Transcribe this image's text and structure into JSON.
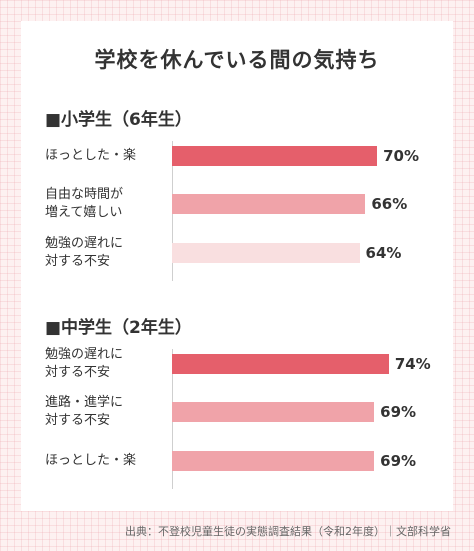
{
  "title": "学校を休んでいる間の気持ち",
  "source": "出典：不登校児童生徒の実態調査結果（令和2年度）｜文部科学省",
  "colors": {
    "dark": "#e55f6b",
    "medium": "#f0a3a9",
    "light": "#f9dfe0"
  },
  "chart_data": [
    {
      "type": "bar",
      "orientation": "horizontal",
      "title": "■小学生（6年生）",
      "categories": [
        [
          "ほっとした・楽"
        ],
        [
          "自由な時間が",
          "増えて嬉しい"
        ],
        [
          "勉強の遅れに",
          "対する不安"
        ]
      ],
      "values": [
        70,
        66,
        64
      ],
      "value_labels": [
        "70%",
        "66%",
        "64%"
      ],
      "bar_colors": [
        "dark",
        "medium",
        "light"
      ]
    },
    {
      "type": "bar",
      "orientation": "horizontal",
      "title": "■中学生（2年生）",
      "categories": [
        [
          "勉強の遅れに",
          "対する不安"
        ],
        [
          "進路・進学に",
          "対する不安"
        ],
        [
          "ほっとした・楽"
        ]
      ],
      "values": [
        74,
        69,
        69
      ],
      "value_labels": [
        "74%",
        "69%",
        "69%"
      ],
      "bar_colors": [
        "dark",
        "medium",
        "medium"
      ]
    }
  ]
}
